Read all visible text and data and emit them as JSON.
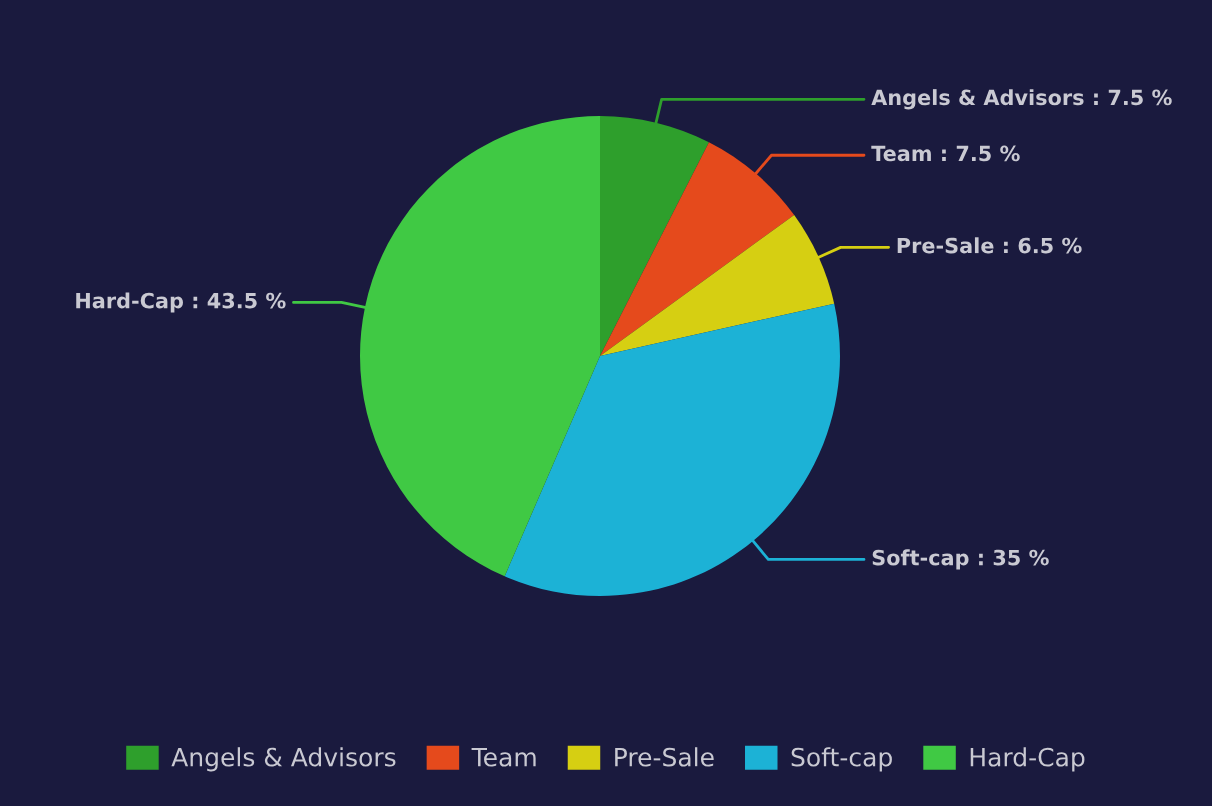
{
  "chart_data": {
    "type": "pie",
    "categories": [
      "Angels & Advisors",
      "Team",
      "Pre-Sale",
      "Soft-cap",
      "Hard-Cap"
    ],
    "values": [
      7.5,
      7.5,
      6.5,
      35,
      43.5
    ],
    "colors": [
      "#2e9f2c",
      "#e54a1c",
      "#d6cf12",
      "#1cb2d6",
      "#40c944"
    ],
    "value_labels": [
      "Angels & Advisors : 7.5 %",
      "Team : 7.5 %",
      "Pre-Sale : 6.5 %",
      "Soft-cap : 35 %",
      "Hard-Cap : 43.5 %"
    ],
    "legend": "bottom"
  }
}
